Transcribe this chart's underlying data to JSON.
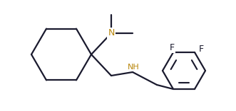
{
  "background_color": "#ffffff",
  "line_color": "#1a1a2e",
  "atom_color": "#1a1a2e",
  "N_color": "#b8860b",
  "line_width": 1.6,
  "font_size": 8,
  "fig_width": 3.31,
  "fig_height": 1.57,
  "dpi": 100,
  "xlim": [
    0,
    331
  ],
  "ylim": [
    0,
    157
  ]
}
